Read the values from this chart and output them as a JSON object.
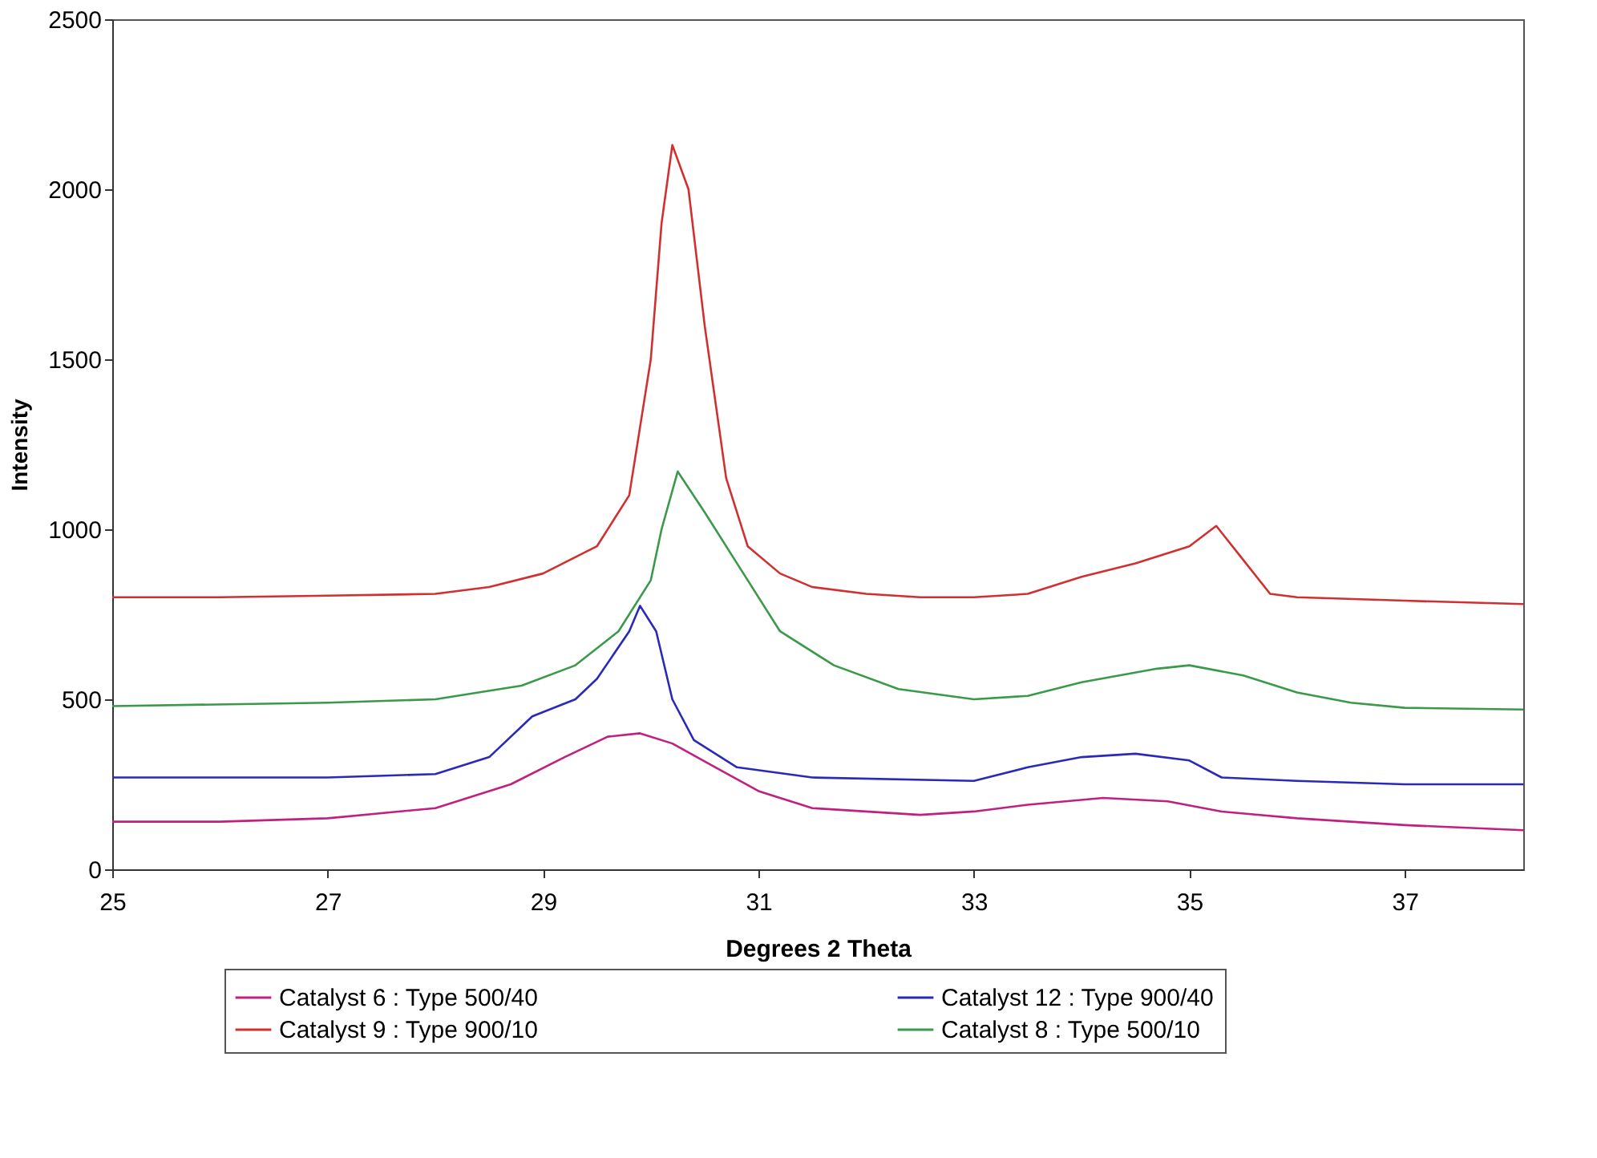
{
  "chart_data": {
    "type": "line",
    "xlabel": "Degrees 2 Theta",
    "ylabel": "Intensity",
    "xlim": [
      25,
      38.1
    ],
    "ylim": [
      0,
      2500
    ],
    "xticks": [
      25,
      27,
      29,
      31,
      33,
      35,
      37
    ],
    "yticks": [
      0,
      500,
      1000,
      1500,
      2000,
      2500
    ],
    "grid": false,
    "legend": "bottom",
    "marker": "none",
    "line_style": "solid",
    "series": [
      {
        "name": "Catalyst 6 : Type 500/40",
        "color": "#c02080",
        "x": [
          25,
          26,
          27,
          28,
          28.7,
          29.2,
          29.6,
          29.9,
          30.2,
          30.6,
          31,
          31.5,
          32.5,
          33,
          33.5,
          34.2,
          34.8,
          35.3,
          36,
          37,
          38.1
        ],
        "values": [
          140,
          140,
          150,
          180,
          250,
          330,
          390,
          400,
          370,
          300,
          230,
          180,
          160,
          170,
          190,
          210,
          200,
          170,
          150,
          130,
          115
        ]
      },
      {
        "name": "Catalyst 12 : Type 900/40",
        "color": "#2a2ab8",
        "x": [
          25,
          27,
          28,
          28.5,
          28.9,
          29.3,
          29.5,
          29.8,
          29.9,
          30.05,
          30.2,
          30.4,
          30.8,
          31.5,
          33,
          33.5,
          34,
          34.5,
          35,
          35.3,
          36,
          37,
          38.1
        ],
        "values": [
          270,
          270,
          280,
          330,
          450,
          500,
          560,
          700,
          775,
          700,
          500,
          380,
          300,
          270,
          260,
          300,
          330,
          340,
          320,
          270,
          260,
          250,
          250
        ]
      },
      {
        "name": "Catalyst 9 : Type 900/10",
        "color": "#d03030",
        "x": [
          25,
          26,
          27,
          28,
          28.5,
          29,
          29.5,
          29.8,
          30,
          30.1,
          30.2,
          30.35,
          30.5,
          30.7,
          30.9,
          31.2,
          31.5,
          32,
          32.5,
          33,
          33.5,
          34,
          34.5,
          35,
          35.25,
          35.45,
          35.75,
          36,
          37,
          38.1
        ],
        "values": [
          800,
          800,
          805,
          810,
          830,
          870,
          950,
          1100,
          1500,
          1900,
          2130,
          2000,
          1600,
          1150,
          950,
          870,
          830,
          810,
          800,
          800,
          810,
          860,
          900,
          950,
          1010,
          930,
          810,
          800,
          790,
          780
        ]
      },
      {
        "name": "Catalyst 8 : Type 500/10",
        "color": "#3a9a4a",
        "x": [
          25,
          27,
          28,
          28.8,
          29.3,
          29.7,
          30,
          30.1,
          30.25,
          30.5,
          30.8,
          31.2,
          31.7,
          32.3,
          33,
          33.5,
          34,
          34.7,
          35,
          35.5,
          36,
          36.5,
          37,
          38.1
        ],
        "values": [
          480,
          490,
          500,
          540,
          600,
          700,
          850,
          1000,
          1170,
          1050,
          900,
          700,
          600,
          530,
          500,
          510,
          550,
          590,
          600,
          570,
          520,
          490,
          475,
          470
        ]
      }
    ]
  }
}
